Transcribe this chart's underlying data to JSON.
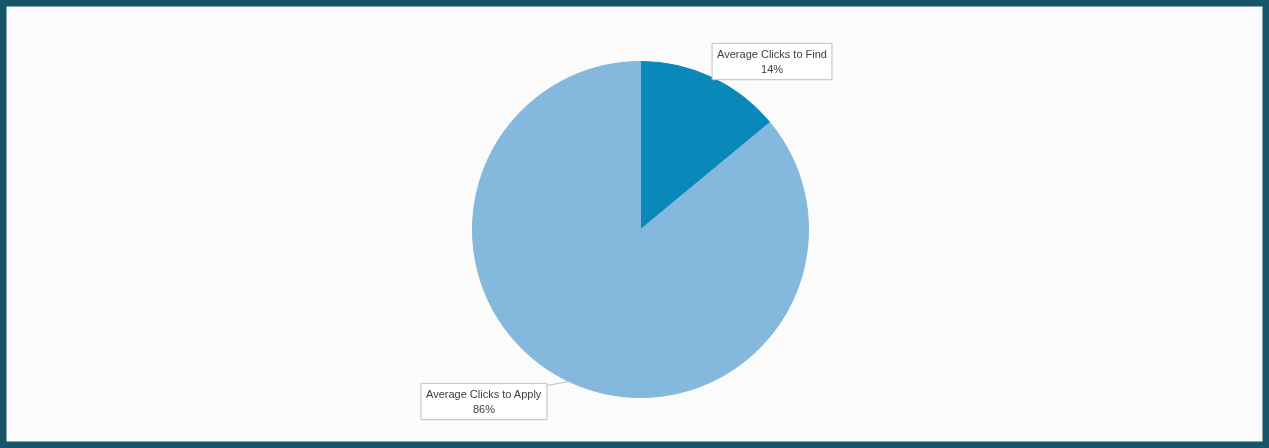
{
  "chart_data": {
    "type": "pie",
    "categories": [
      "Average Clicks to Find",
      "Average Clicks to Apply"
    ],
    "values": [
      14,
      86
    ],
    "colors": [
      "#0a88b9",
      "#84b8dc"
    ],
    "value_labels": [
      "14%",
      "86%"
    ]
  }
}
